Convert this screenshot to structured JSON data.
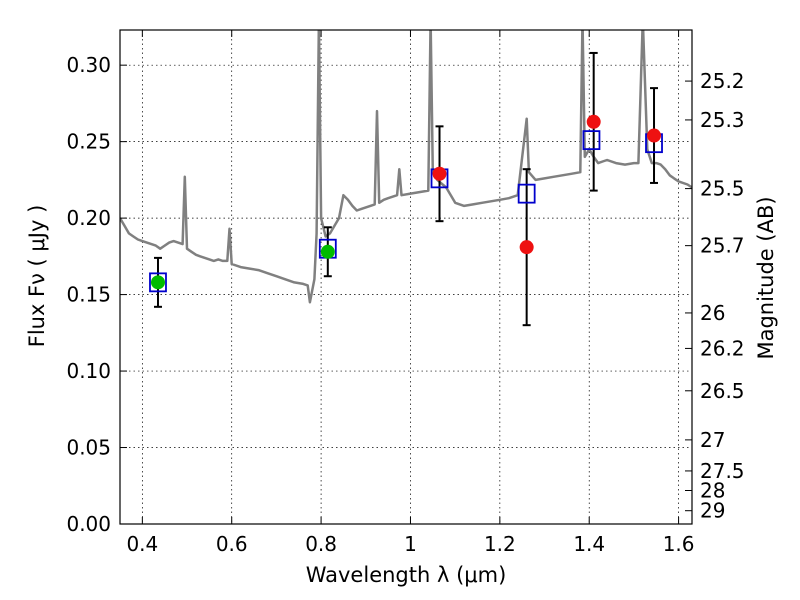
{
  "chart_data": {
    "type": "scatter",
    "xlabel": "Wavelength  λ (μm)",
    "ylabel": "Flux  Fν  ( μJy )",
    "y2label": "Magnitude (AB)",
    "xlim": [
      0.35,
      1.63
    ],
    "ylim": [
      0.0,
      0.323
    ],
    "grid": true,
    "x_ticks": [
      0.4,
      0.6,
      0.8,
      1.0,
      1.2,
      1.4,
      1.6
    ],
    "x_tick_labels": [
      "0.4",
      "0.6",
      "0.8",
      "1",
      "1.2",
      "1.4",
      "1.6"
    ],
    "y_ticks": [
      0.0,
      0.05,
      0.1,
      0.15,
      0.2,
      0.25,
      0.3
    ],
    "y_tick_labels": [
      "0.00",
      "0.05",
      "0.10",
      "0.15",
      "0.20",
      "0.25",
      "0.30"
    ],
    "y2_ticks": [
      {
        "label": "25.2",
        "flux": 0.2896
      },
      {
        "label": "25.3",
        "flux": 0.2642
      },
      {
        "label": "25.5",
        "flux": 0.2193
      },
      {
        "label": "25.7",
        "flux": 0.182
      },
      {
        "label": "26",
        "flux": 0.138
      },
      {
        "label": "26.2",
        "flux": 0.1148
      },
      {
        "label": "26.5",
        "flux": 0.0871
      },
      {
        "label": "27",
        "flux": 0.055
      },
      {
        "label": "27.5",
        "flux": 0.0347
      },
      {
        "label": "28",
        "flux": 0.0219
      },
      {
        "label": "29",
        "flux": 0.0087
      }
    ],
    "colors": {
      "sed": "#808080",
      "model_box": "#0000cc",
      "green": "#00bb00",
      "red": "#ee1111",
      "errorbar": "#000000"
    },
    "series": [
      {
        "type": "line",
        "points": [
          [
            0.35,
            0.2
          ],
          [
            0.36,
            0.195
          ],
          [
            0.37,
            0.19
          ],
          [
            0.38,
            0.188
          ],
          [
            0.39,
            0.186
          ],
          [
            0.4,
            0.185
          ],
          [
            0.41,
            0.184
          ],
          [
            0.42,
            0.183
          ],
          [
            0.43,
            0.182
          ],
          [
            0.44,
            0.18
          ],
          [
            0.45,
            0.182
          ],
          [
            0.46,
            0.184
          ],
          [
            0.47,
            0.185
          ],
          [
            0.48,
            0.184
          ],
          [
            0.49,
            0.183
          ],
          [
            0.495,
            0.227
          ],
          [
            0.5,
            0.18
          ],
          [
            0.51,
            0.178
          ],
          [
            0.52,
            0.176
          ],
          [
            0.53,
            0.175
          ],
          [
            0.54,
            0.174
          ],
          [
            0.55,
            0.173
          ],
          [
            0.56,
            0.172
          ],
          [
            0.57,
            0.173
          ],
          [
            0.58,
            0.172
          ],
          [
            0.59,
            0.172
          ],
          [
            0.595,
            0.193
          ],
          [
            0.6,
            0.17
          ],
          [
            0.62,
            0.168
          ],
          [
            0.64,
            0.167
          ],
          [
            0.66,
            0.166
          ],
          [
            0.68,
            0.164
          ],
          [
            0.7,
            0.162
          ],
          [
            0.72,
            0.16
          ],
          [
            0.74,
            0.158
          ],
          [
            0.76,
            0.157
          ],
          [
            0.77,
            0.156
          ],
          [
            0.775,
            0.145
          ],
          [
            0.785,
            0.16
          ],
          [
            0.79,
            0.19
          ],
          [
            0.795,
            0.33
          ],
          [
            0.8,
            0.2
          ],
          [
            0.81,
            0.188
          ],
          [
            0.82,
            0.19
          ],
          [
            0.83,
            0.195
          ],
          [
            0.84,
            0.2
          ],
          [
            0.85,
            0.215
          ],
          [
            0.86,
            0.212
          ],
          [
            0.87,
            0.208
          ],
          [
            0.88,
            0.205
          ],
          [
            0.89,
            0.206
          ],
          [
            0.9,
            0.207
          ],
          [
            0.91,
            0.208
          ],
          [
            0.92,
            0.209
          ],
          [
            0.925,
            0.27
          ],
          [
            0.93,
            0.21
          ],
          [
            0.94,
            0.212
          ],
          [
            0.95,
            0.213
          ],
          [
            0.96,
            0.214
          ],
          [
            0.97,
            0.215
          ],
          [
            0.975,
            0.232
          ],
          [
            0.98,
            0.215
          ],
          [
            1.0,
            0.216
          ],
          [
            1.02,
            0.217
          ],
          [
            1.04,
            0.218
          ],
          [
            1.045,
            0.33
          ],
          [
            1.05,
            0.23
          ],
          [
            1.06,
            0.225
          ],
          [
            1.08,
            0.22
          ],
          [
            1.1,
            0.21
          ],
          [
            1.12,
            0.208
          ],
          [
            1.14,
            0.209
          ],
          [
            1.16,
            0.21
          ],
          [
            1.18,
            0.211
          ],
          [
            1.2,
            0.212
          ],
          [
            1.22,
            0.213
          ],
          [
            1.24,
            0.215
          ],
          [
            1.25,
            0.24
          ],
          [
            1.26,
            0.265
          ],
          [
            1.265,
            0.23
          ],
          [
            1.28,
            0.225
          ],
          [
            1.3,
            0.226
          ],
          [
            1.32,
            0.227
          ],
          [
            1.34,
            0.228
          ],
          [
            1.36,
            0.229
          ],
          [
            1.38,
            0.23
          ],
          [
            1.385,
            0.33
          ],
          [
            1.39,
            0.24
          ],
          [
            1.4,
            0.245
          ],
          [
            1.41,
            0.24
          ],
          [
            1.42,
            0.236
          ],
          [
            1.43,
            0.237
          ],
          [
            1.44,
            0.238
          ],
          [
            1.46,
            0.236
          ],
          [
            1.48,
            0.235
          ],
          [
            1.5,
            0.236
          ],
          [
            1.51,
            0.236
          ],
          [
            1.52,
            0.33
          ],
          [
            1.53,
            0.245
          ],
          [
            1.54,
            0.236
          ],
          [
            1.55,
            0.236
          ],
          [
            1.56,
            0.235
          ],
          [
            1.57,
            0.232
          ],
          [
            1.58,
            0.228
          ],
          [
            1.59,
            0.226
          ],
          [
            1.6,
            0.224
          ],
          [
            1.62,
            0.222
          ],
          [
            1.63,
            0.22
          ]
        ]
      },
      {
        "type": "model_boxes",
        "x": [
          0.435,
          0.815,
          1.065,
          1.26,
          1.405,
          1.545
        ],
        "y": [
          0.158,
          0.18,
          0.226,
          0.216,
          0.251,
          0.249
        ]
      },
      {
        "type": "points_green",
        "x": [
          0.435,
          0.815
        ],
        "y": [
          0.158,
          0.178
        ],
        "yerr": [
          0.016,
          0.016
        ]
      },
      {
        "type": "points_red",
        "x": [
          1.065,
          1.26,
          1.41,
          1.545
        ],
        "y": [
          0.229,
          0.181,
          0.263,
          0.254
        ],
        "yerr": [
          0.031,
          0.051,
          0.045,
          0.031
        ]
      }
    ]
  }
}
